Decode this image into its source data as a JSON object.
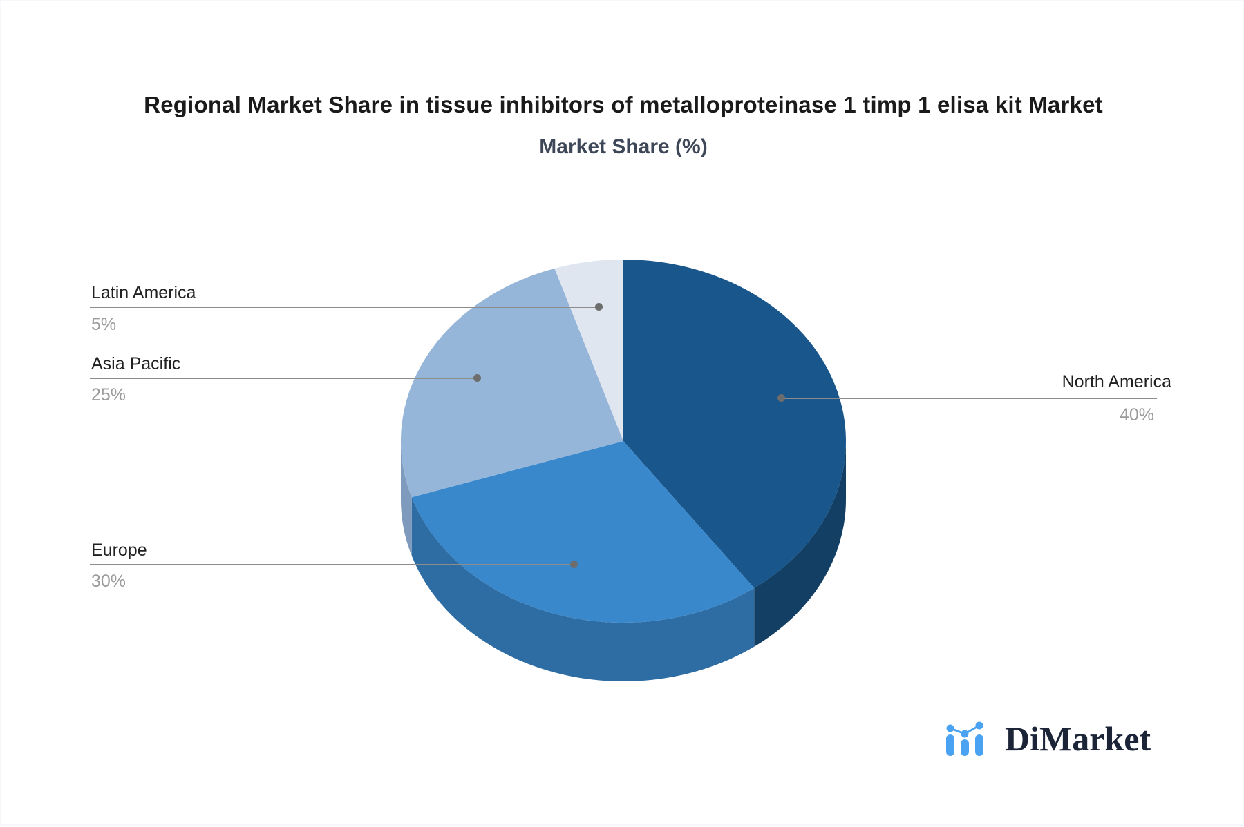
{
  "header": {
    "title": "Regional Market Share in tissue inhibitors of metalloproteinase 1 timp 1 elisa kit Market",
    "subtitle": "Market Share (%)"
  },
  "chart_data": {
    "type": "pie",
    "title": "Regional Market Share in tissue inhibitors of metalloproteinase 1 timp 1 elisa kit Market",
    "subtitle": "Market Share (%)",
    "unit": "%",
    "style": "3d-pie",
    "start_angle_deg": 0,
    "direction": "clockwise",
    "legend_position": "callout-labels",
    "slices": [
      {
        "label": "North America",
        "value": 40,
        "display": "40%",
        "color": "#19568c",
        "side_color": "#143f64"
      },
      {
        "label": "Europe",
        "value": 30,
        "display": "30%",
        "color": "#3a88cc",
        "side_color": "#2e6da3"
      },
      {
        "label": "Asia Pacific",
        "value": 25,
        "display": "25%",
        "color": "#95b5d9",
        "side_color": "#7e9abc"
      },
      {
        "label": "Latin America",
        "value": 5,
        "display": "5%",
        "color": "#dfe6f0",
        "side_color": "#c5cfdc"
      }
    ]
  },
  "watermark": {
    "brand": "DiMarket",
    "icon": "bar-line-chart-icon",
    "icon_color": "#4aa2f2",
    "text_color": "#1c2438"
  },
  "colors": {
    "background": "#ffffff",
    "title_text": "#1a1a1a",
    "subtitle_text": "#3d4757",
    "callout_label_text": "#212121",
    "callout_pct_text": "#9b9b9b",
    "callout_line": "#8c8c8c",
    "callout_dot": "#6d6d6d"
  }
}
